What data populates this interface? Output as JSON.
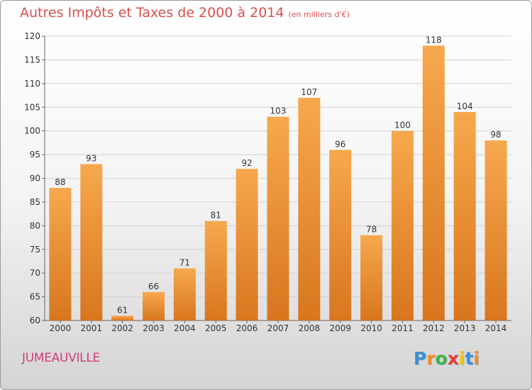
{
  "title": "Autres Impôts et Taxes de 2000 à 2014",
  "title_unit": "(en milliers d'€)",
  "place": "JUMEAUVILLE",
  "logo": {
    "letters": [
      "P",
      "r",
      "o",
      "x",
      "i",
      "t",
      "i"
    ],
    "colors": [
      "#3a8fd6",
      "#f28c28",
      "#3ab54a",
      "#e63c3c",
      "#f5c400",
      "#3a8fd6",
      "#f28c28"
    ]
  },
  "colors": {
    "bar_top": "#f7a84d",
    "bar_bottom": "#d8761e",
    "title": "#d94f4f",
    "place": "#d23c7a"
  },
  "chart_data": {
    "type": "bar",
    "title": "Autres Impôts et Taxes de 2000 à 2014",
    "categories": [
      "2000",
      "2001",
      "2002",
      "2003",
      "2004",
      "2005",
      "2006",
      "2007",
      "2008",
      "2009",
      "2010",
      "2011",
      "2012",
      "2013",
      "2014"
    ],
    "values": [
      88,
      93,
      61,
      66,
      71,
      81,
      92,
      103,
      107,
      96,
      78,
      100,
      118,
      104,
      98
    ],
    "ylim": [
      60,
      120
    ],
    "yticks": [
      60,
      65,
      70,
      75,
      80,
      85,
      90,
      95,
      100,
      105,
      110,
      115,
      120
    ],
    "grid": true,
    "xlabel": "",
    "ylabel": ""
  }
}
